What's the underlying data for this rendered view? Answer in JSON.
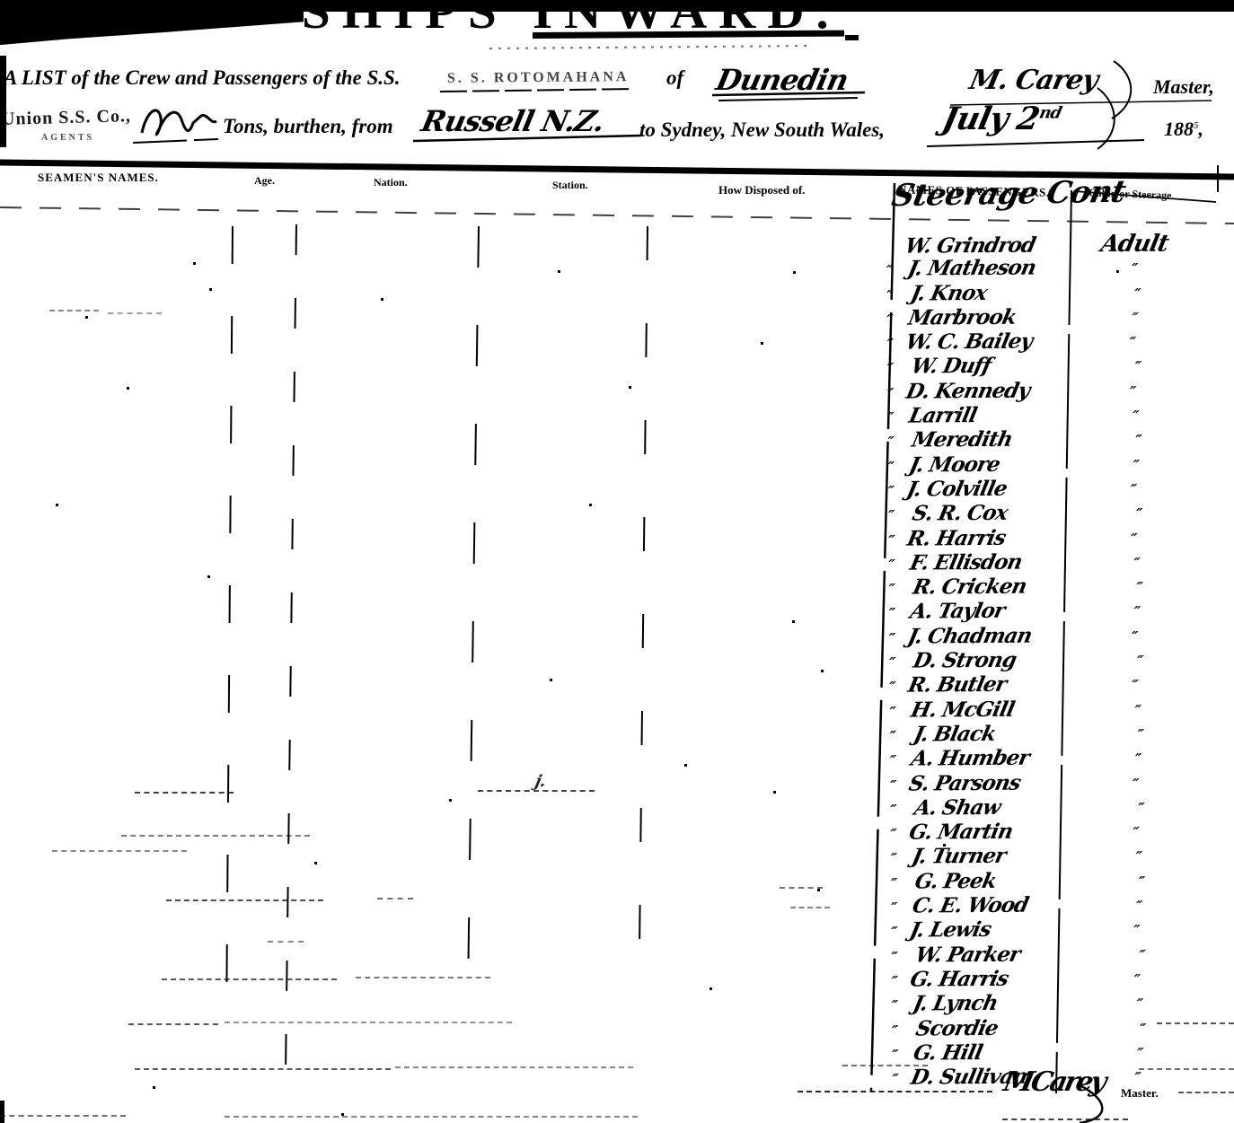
{
  "title": "SHIPS INWARD.",
  "form": {
    "list_line": "A LIST of the Crew and Passengers of the S.S.",
    "ship_name_stamp": "S. S. ROTOMAHANA",
    "of_label": "of",
    "port_of_registry": "Dunedin",
    "master_name": "M. Carey",
    "master_label": "Master,",
    "agents_stamp": "Union S.S. Co.,",
    "agents_stamp_sub": "AGENTS",
    "tons_label": "Tons, burthen, from",
    "from_port": "Russell  N.Z.",
    "destination_line": "to Sydney, New South Wales,",
    "date_handwritten": "July 2",
    "date_suffix": "nd",
    "year_printed": "188",
    "year_mark": "5",
    "year_comma": ","
  },
  "table_headers": {
    "seamens_names": "SEAMEN'S NAMES.",
    "age": "Age.",
    "nation": "Nation.",
    "station": "Station.",
    "how_disposed": "How Disposed of.",
    "names_of_passengers": "NAMES OF PASSENGERS.",
    "cabin_or_steerage": "Cabin or Steerage",
    "handwritten_overlay": "Steerage Cont"
  },
  "passengers": {
    "rows": [
      {
        "prefix": "",
        "name": "W. Grindrod",
        "status": "Adult"
      },
      {
        "prefix": "″",
        "name": "J. Matheson",
        "status": "″"
      },
      {
        "prefix": "″",
        "name": "J. Knox",
        "status": "″"
      },
      {
        "prefix": "″",
        "name": "Marbrook",
        "status": "″"
      },
      {
        "prefix": "″",
        "name": "W. C. Bailey",
        "status": "″"
      },
      {
        "prefix": "″",
        "name": "W. Duff",
        "status": "″"
      },
      {
        "prefix": "″",
        "name": "D. Kennedy",
        "status": "″"
      },
      {
        "prefix": "″",
        "name": "Larrill",
        "status": "″"
      },
      {
        "prefix": "″",
        "name": "Meredith",
        "status": "″"
      },
      {
        "prefix": "″",
        "name": "J. Moore",
        "status": "″"
      },
      {
        "prefix": "″",
        "name": "J. Colville",
        "status": "″"
      },
      {
        "prefix": "″",
        "name": "S. R. Cox",
        "status": "″"
      },
      {
        "prefix": "″",
        "name": "R. Harris",
        "status": "″"
      },
      {
        "prefix": "″",
        "name": "F. Ellisdon",
        "status": "″"
      },
      {
        "prefix": "″",
        "name": "R. Cricken",
        "status": "″"
      },
      {
        "prefix": "″",
        "name": "A. Taylor",
        "status": "″"
      },
      {
        "prefix": "″",
        "name": "J. Chadman",
        "status": "″"
      },
      {
        "prefix": "″",
        "name": "D. Strong",
        "status": "″"
      },
      {
        "prefix": "″",
        "name": "R. Butler",
        "status": "″"
      },
      {
        "prefix": "″",
        "name": "H. McGill",
        "status": "″"
      },
      {
        "prefix": "″",
        "name": "J. Black",
        "status": "″"
      },
      {
        "prefix": "″",
        "name": "A. Humber",
        "status": "″"
      },
      {
        "prefix": "″",
        "name": "S. Parsons",
        "status": "″"
      },
      {
        "prefix": "″",
        "name": "A. Shaw",
        "status": "″"
      },
      {
        "prefix": "″",
        "name": "G. Martin",
        "status": "″"
      },
      {
        "prefix": "″",
        "name": "J. Turner",
        "status": "″"
      },
      {
        "prefix": "″",
        "name": "G. Peek",
        "status": "″"
      },
      {
        "prefix": "″",
        "name": "C. E. Wood",
        "status": "″"
      },
      {
        "prefix": "″",
        "name": "J. Lewis",
        "status": "″"
      },
      {
        "prefix": "″",
        "name": "W. Parker",
        "status": "″"
      },
      {
        "prefix": "″",
        "name": "G. Harris",
        "status": "″"
      },
      {
        "prefix": "″",
        "name": "J. Lynch",
        "status": "″"
      },
      {
        "prefix": "″",
        "name": "Scordie",
        "status": "″"
      },
      {
        "prefix": "″",
        "name": "G. Hill",
        "status": "″"
      },
      {
        "prefix": "″",
        "name": "D. Sullivan",
        "status": "″"
      }
    ]
  },
  "footer": {
    "signature": "MCarey",
    "master_label": "Master."
  },
  "stray_mark": "j."
}
